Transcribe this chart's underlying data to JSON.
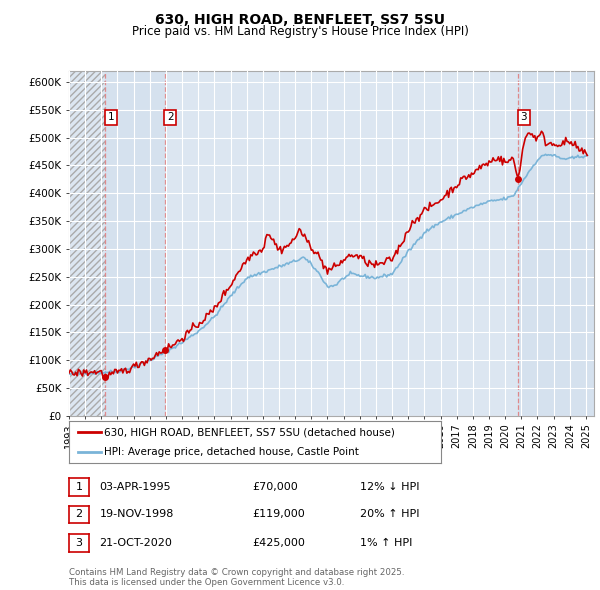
{
  "title": "630, HIGH ROAD, BENFLEET, SS7 5SU",
  "subtitle": "Price paid vs. HM Land Registry's House Price Index (HPI)",
  "ylim": [
    0,
    620000
  ],
  "yticks": [
    0,
    50000,
    100000,
    150000,
    200000,
    250000,
    300000,
    350000,
    400000,
    450000,
    500000,
    550000,
    600000
  ],
  "ytick_labels": [
    "£0",
    "£50K",
    "£100K",
    "£150K",
    "£200K",
    "£250K",
    "£300K",
    "£350K",
    "£400K",
    "£450K",
    "£500K",
    "£550K",
    "£600K"
  ],
  "plot_bg_color": "#dce6f1",
  "grid_color": "white",
  "hpi_color": "#7ab4d8",
  "price_color": "#cc0000",
  "legend_label_price": "630, HIGH ROAD, BENFLEET, SS7 5SU (detached house)",
  "legend_label_hpi": "HPI: Average price, detached house, Castle Point",
  "xmin": 1993.0,
  "xmax": 2025.5,
  "transactions": [
    {
      "num": 1,
      "date_x": 1995.25,
      "price": 70000,
      "label": "1",
      "info": "03-APR-1995",
      "amount": "£70,000",
      "pct": "12% ↓ HPI"
    },
    {
      "num": 2,
      "date_x": 1998.92,
      "price": 119000,
      "label": "2",
      "info": "19-NOV-1998",
      "amount": "£119,000",
      "pct": "20% ↑ HPI"
    },
    {
      "num": 3,
      "date_x": 2020.8,
      "price": 425000,
      "label": "3",
      "info": "21-OCT-2020",
      "amount": "£425,000",
      "pct": "1% ↑ HPI"
    }
  ],
  "footer": "Contains HM Land Registry data © Crown copyright and database right 2025.\nThis data is licensed under the Open Government Licence v3.0."
}
